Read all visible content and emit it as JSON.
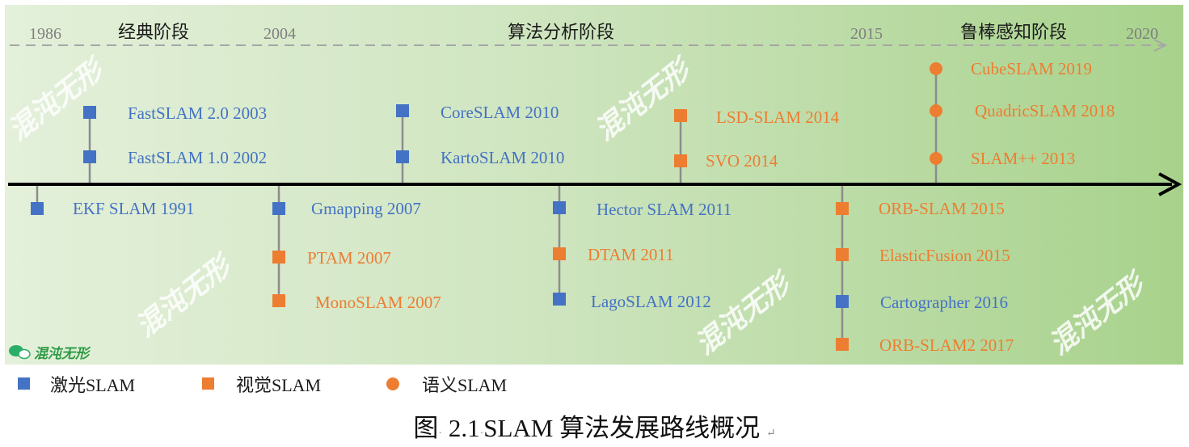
{
  "years": [
    "1986",
    "2004",
    "2015",
    "2020"
  ],
  "stages": [
    "经典阶段",
    "算法分析阶段",
    "鲁棒感知阶段"
  ],
  "events": {
    "above": [
      {
        "label": "FastSLAM 2.0 2003",
        "type": "laser"
      },
      {
        "label": "FastSLAM 1.0 2002",
        "type": "laser"
      },
      {
        "label": "CoreSLAM 2010",
        "type": "laser"
      },
      {
        "label": "KartoSLAM 2010",
        "type": "laser"
      },
      {
        "label": "LSD-SLAM 2014",
        "type": "visual"
      },
      {
        "label": "SVO 2014",
        "type": "visual"
      },
      {
        "label": "CubeSLAM 2019",
        "type": "semantic"
      },
      {
        "label": "QuadricSLAM 2018",
        "type": "semantic"
      },
      {
        "label": "SLAM++ 2013",
        "type": "semantic"
      }
    ],
    "below": [
      {
        "label": "EKF SLAM 1991",
        "type": "laser"
      },
      {
        "label": "Gmapping 2007",
        "type": "laser"
      },
      {
        "label": "PTAM 2007",
        "type": "visual"
      },
      {
        "label": "MonoSLAM 2007",
        "type": "visual"
      },
      {
        "label": "Hector SLAM 2011",
        "type": "laser"
      },
      {
        "label": "DTAM 2011",
        "type": "visual"
      },
      {
        "label": "LagoSLAM 2012",
        "type": "laser"
      },
      {
        "label": "ORB-SLAM 2015",
        "type": "visual"
      },
      {
        "label": "ElasticFusion 2015",
        "type": "visual"
      },
      {
        "label": "Cartographer 2016",
        "type": "laser"
      },
      {
        "label": "ORB-SLAM2 2017",
        "type": "visual"
      }
    ]
  },
  "watermark": {
    "text": "混沌无形"
  },
  "legend": [
    {
      "label": "激光SLAM",
      "type": "laser"
    },
    {
      "label": "视觉SLAM",
      "type": "visual"
    },
    {
      "label": "语义SLAM",
      "type": "semantic"
    }
  ],
  "caption": {
    "prefix": "图",
    "dot": "·",
    "number": "2.1",
    "title": "SLAM 算法发展路线概况",
    "mark": "↵"
  },
  "colors": {
    "laser": "#4472c4",
    "visual": "#ed7d31",
    "semantic": "#ed7d31",
    "axis": "#000000"
  }
}
